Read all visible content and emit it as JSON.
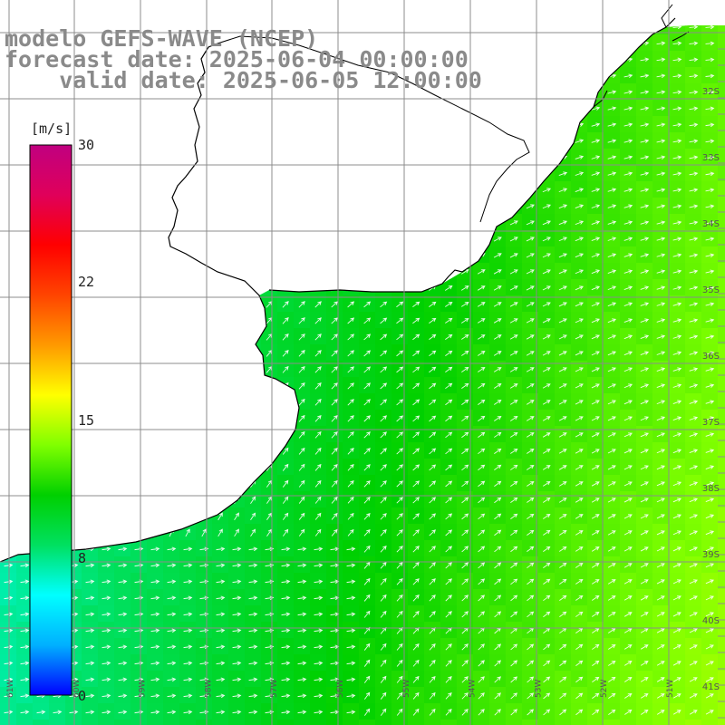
{
  "header": {
    "line1": "modelo GEFS-WAVE (NCEP)",
    "line2": "forecast date: 2025-06-04 00:00:00",
    "line3": "    valid date: 2025-06-05 12:00:00"
  },
  "colorbar": {
    "unit": "[m/s]",
    "ticks": [
      "30",
      "22",
      "15",
      "8",
      "0"
    ],
    "stops": [
      "#0000ff",
      "#00b0ff",
      "#00ffff",
      "#00e060",
      "#00d000",
      "#80ff00",
      "#ffff00",
      "#ff9900",
      "#ff4400",
      "#ff0000",
      "#e0005a",
      "#c00080"
    ]
  },
  "grid": {
    "lat_labels": [
      "32S",
      "33S",
      "34S",
      "35S",
      "36S",
      "37S",
      "38S",
      "39S",
      "40S",
      "41S"
    ],
    "lon_labels": [
      "61W",
      "60W",
      "59W",
      "58W",
      "57W",
      "56W",
      "55W",
      "54W",
      "53W",
      "52W",
      "51W"
    ]
  },
  "field": {
    "variable": "wind speed",
    "units": "m/s",
    "direction": "southerly wind, arrows pointing north-northeast near coast, east-northeast offshore",
    "range": [
      8,
      13
    ]
  },
  "colors": {
    "land": "#ffffff",
    "coast": "#000000",
    "grid_line": "#8c8c8c",
    "arrow": "#ffffff"
  }
}
